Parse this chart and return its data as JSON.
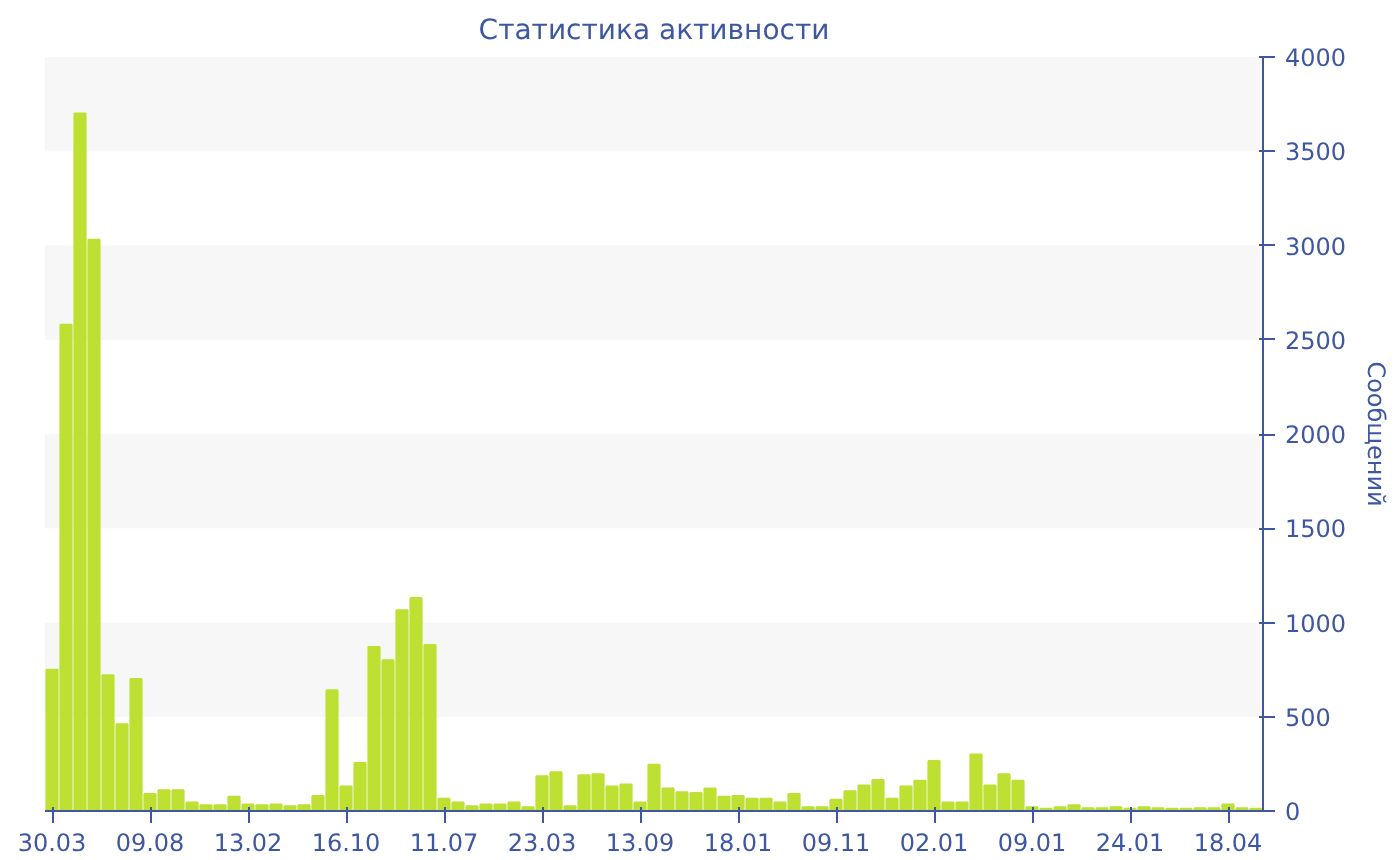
{
  "chart_data": {
    "type": "bar",
    "title": "Статистика активности",
    "ylabel": "Сообщений",
    "categories": [
      "30.03",
      null,
      null,
      null,
      null,
      null,
      null,
      "09.08",
      null,
      null,
      null,
      null,
      null,
      null,
      "13.02",
      null,
      null,
      null,
      null,
      null,
      null,
      "16.10",
      null,
      null,
      null,
      null,
      null,
      null,
      "11.07",
      null,
      null,
      null,
      null,
      null,
      null,
      "23.03",
      null,
      null,
      null,
      null,
      null,
      null,
      "13.09",
      null,
      null,
      null,
      null,
      null,
      null,
      "18.01",
      null,
      null,
      null,
      null,
      null,
      null,
      "09.11",
      null,
      null,
      null,
      null,
      null,
      null,
      "02.01",
      null,
      null,
      null,
      null,
      null,
      null,
      "09.01",
      null,
      null,
      null,
      null,
      null,
      null,
      "24.01",
      null,
      null,
      null,
      null,
      null,
      null,
      "18.04",
      null,
      null
    ],
    "values": [
      750,
      2580,
      3700,
      3030,
      720,
      460,
      700,
      90,
      110,
      110,
      45,
      30,
      30,
      75,
      35,
      30,
      35,
      25,
      30,
      80,
      640,
      130,
      255,
      870,
      800,
      1065,
      1130,
      880,
      65,
      45,
      25,
      35,
      35,
      45,
      20,
      185,
      205,
      25,
      190,
      195,
      130,
      140,
      45,
      245,
      120,
      100,
      95,
      120,
      75,
      80,
      65,
      65,
      45,
      90,
      20,
      20,
      60,
      105,
      135,
      165,
      65,
      130,
      160,
      265,
      45,
      45,
      300,
      135,
      195,
      160,
      20,
      12,
      20,
      30,
      15,
      15,
      20,
      12,
      20,
      15,
      12,
      12,
      15,
      15,
      35,
      15,
      12
    ],
    "color": "#bde033",
    "ylim": [
      0,
      4000
    ],
    "yticks": [
      0,
      500,
      1000,
      1500,
      2000,
      2500,
      3000,
      3500,
      4000
    ]
  }
}
